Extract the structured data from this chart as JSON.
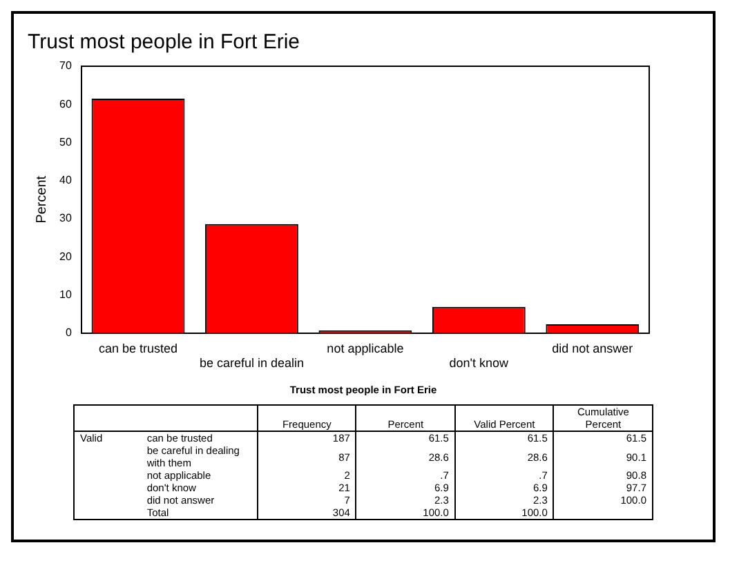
{
  "chart_data": [
    {
      "type": "bar",
      "title": "Trust most people in Fort Erie",
      "ylabel": "Percent",
      "categories": [
        "can be trusted",
        "be careful in dealin",
        "not applicable",
        "don't know",
        "did not answer"
      ],
      "values": [
        61.5,
        28.6,
        0.7,
        6.9,
        2.3
      ],
      "color": "#ff0000",
      "ylim": [
        0,
        70
      ],
      "yticks": [
        0,
        10,
        20,
        30,
        40,
        50,
        60,
        70
      ],
      "grid": false
    },
    {
      "type": "other",
      "title": "Trust most people in Fort Erie",
      "annotations": [
        "Valid"
      ],
      "categories": [
        "can be trusted",
        "be careful in dealing with them",
        "not applicable",
        "don't know",
        "did not answer",
        "Total"
      ],
      "series": [
        {
          "name": "Frequency",
          "values": [
            187,
            87,
            2,
            21,
            7,
            304
          ],
          "value_labels": [
            "187",
            "87",
            "2",
            "21",
            "7",
            "304"
          ]
        },
        {
          "name": "Percent",
          "values": [
            61.5,
            28.6,
            0.7,
            6.9,
            2.3,
            100.0
          ],
          "value_labels": [
            "61.5",
            "28.6",
            ".7",
            "6.9",
            "2.3",
            "100.0"
          ]
        },
        {
          "name": "Valid Percent",
          "values": [
            61.5,
            28.6,
            0.7,
            6.9,
            2.3,
            100.0
          ],
          "value_labels": [
            "61.5",
            "28.6",
            ".7",
            "6.9",
            "2.3",
            "100.0"
          ]
        },
        {
          "name": "Cumulative Percent",
          "values": [
            61.5,
            90.1,
            90.8,
            97.7,
            100.0,
            null
          ],
          "value_labels": [
            "61.5",
            "90.1",
            "90.8",
            "97.7",
            "100.0",
            null
          ]
        }
      ]
    }
  ]
}
